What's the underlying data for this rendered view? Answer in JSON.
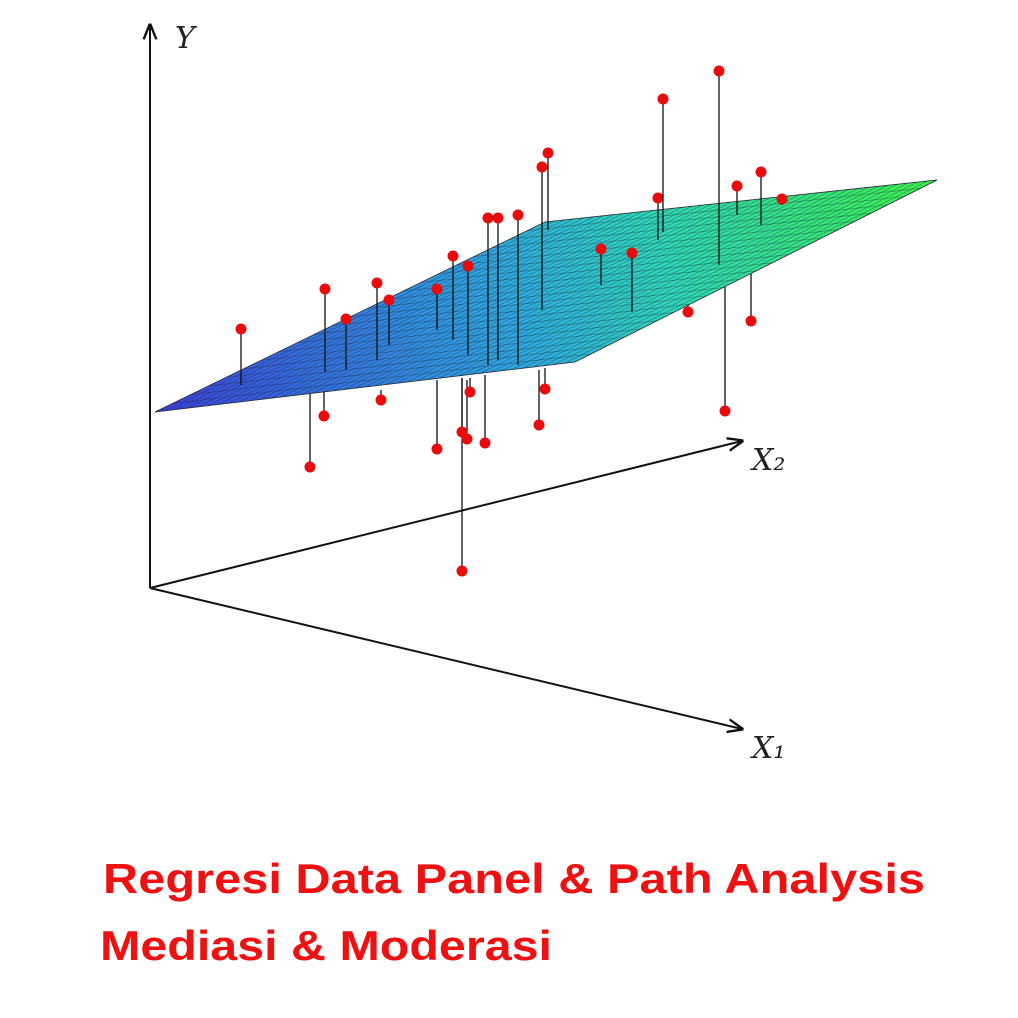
{
  "axes": {
    "y_label": "Y",
    "x2_label": "X₂",
    "x1_label": "X₁"
  },
  "caption": {
    "line1": "Regresi Data Panel & Path Analysis",
    "line2": "Mediasi & Moderasi"
  }
}
